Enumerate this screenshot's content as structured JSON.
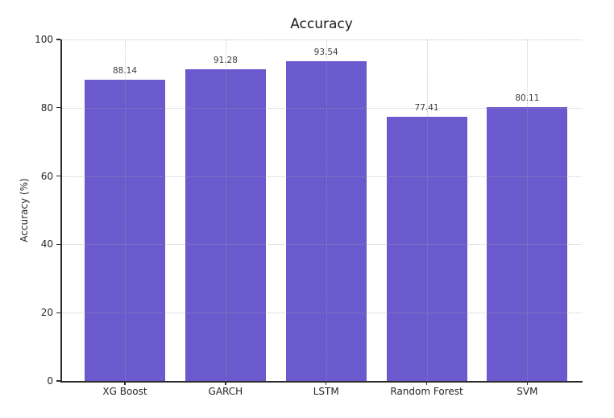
{
  "chart_data": {
    "type": "bar",
    "title": "Accuracy",
    "xlabel": "",
    "ylabel": "Accuracy (%)",
    "categories": [
      "XG Boost",
      "GARCH",
      "LSTM",
      "Random Forest",
      "SVM"
    ],
    "values": [
      88.14,
      91.28,
      93.54,
      77.41,
      80.11
    ],
    "value_labels": [
      "88.14",
      "91.28",
      "93.54",
      "77.41",
      "80.11"
    ],
    "ylim": [
      0,
      100
    ],
    "yticks": [
      0,
      20,
      40,
      60,
      80,
      100
    ],
    "bar_color": "#6A5ACD",
    "grid": "dotted gridlines on both axes, drawn above bars",
    "legend": "none",
    "background_color": "#ffffff",
    "text_color": "#262626"
  }
}
